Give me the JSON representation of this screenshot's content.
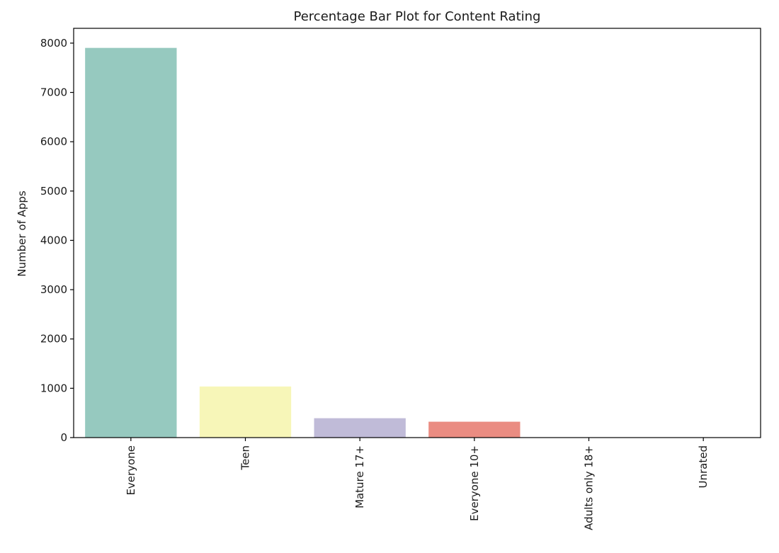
{
  "chart_data": {
    "type": "bar",
    "title": "Percentage Bar Plot for Content Rating",
    "xlabel": "",
    "ylabel": "Number of Apps",
    "categories": [
      "Everyone",
      "Teen",
      "Mature 17+",
      "Everyone 10+",
      "Adults only 18+",
      "Unrated"
    ],
    "values": [
      7903,
      1036,
      393,
      322,
      3,
      2
    ],
    "colors": [
      "#96c9bf",
      "#f7f6b8",
      "#c0bbd8",
      "#ea8c82",
      "#86aecc",
      "#f3b96e"
    ],
    "ylim": [
      0,
      8300
    ],
    "yticks": [
      0,
      1000,
      2000,
      3000,
      4000,
      5000,
      6000,
      7000,
      8000
    ],
    "ytick_labels": [
      "0",
      "1000",
      "2000",
      "3000",
      "4000",
      "5000",
      "6000",
      "7000",
      "8000"
    ],
    "grid": false,
    "legend": "none"
  }
}
